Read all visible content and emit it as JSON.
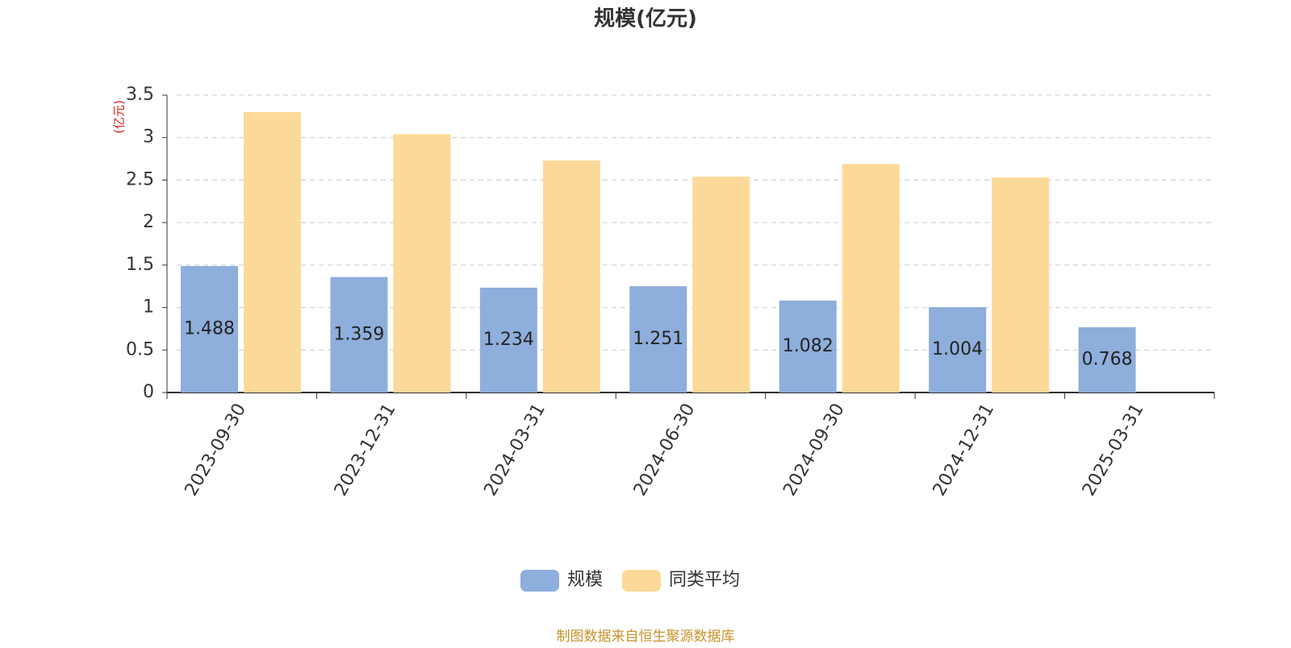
{
  "chart_data": {
    "type": "bar",
    "title": "规模(亿元)",
    "y_axis_label": "(亿元)",
    "categories": [
      "2023-09-30",
      "2023-12-31",
      "2024-03-31",
      "2024-06-30",
      "2024-09-30",
      "2024-12-31",
      "2025-03-31"
    ],
    "series": [
      {
        "name": "规模",
        "color": "#8eaedb",
        "values": [
          1.488,
          1.359,
          1.234,
          1.251,
          1.082,
          1.004,
          0.768
        ]
      },
      {
        "name": "同类平均",
        "color": "#fdd999",
        "values": [
          3.3,
          3.04,
          2.73,
          2.54,
          2.69,
          2.53,
          null
        ]
      }
    ],
    "ylim": [
      0,
      3.5
    ],
    "yticks": [
      0,
      0.5,
      1,
      1.5,
      2,
      2.5,
      3,
      3.5
    ],
    "grid": true,
    "source": "制图数据来自恒生聚源数据库"
  }
}
